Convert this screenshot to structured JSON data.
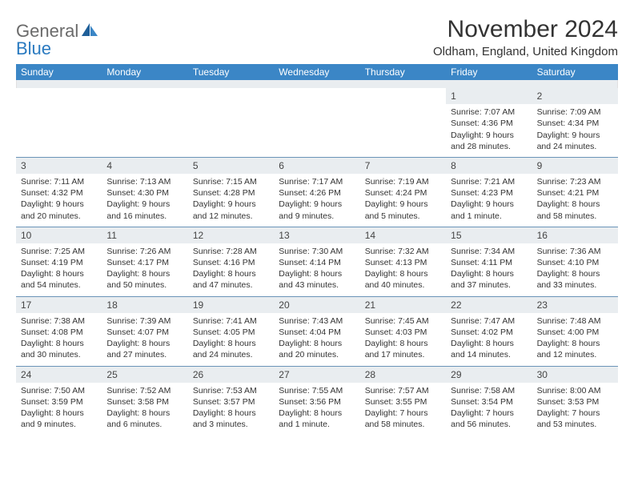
{
  "logo": {
    "text1": "General",
    "text2": "Blue"
  },
  "title": "November 2024",
  "location": "Oldham, England, United Kingdom",
  "colors": {
    "header_bg": "#3b86c6",
    "header_fg": "#ffffff",
    "daynum_bg": "#e9edf0",
    "daynum_border": "#6a94b8",
    "text": "#333333",
    "logo_gray": "#6a6a6a",
    "logo_blue": "#2a7ac0"
  },
  "day_names": [
    "Sunday",
    "Monday",
    "Tuesday",
    "Wednesday",
    "Thursday",
    "Friday",
    "Saturday"
  ],
  "weeks": [
    [
      null,
      null,
      null,
      null,
      null,
      {
        "n": "1",
        "sr": "Sunrise: 7:07 AM",
        "ss": "Sunset: 4:36 PM",
        "d1": "Daylight: 9 hours",
        "d2": "and 28 minutes."
      },
      {
        "n": "2",
        "sr": "Sunrise: 7:09 AM",
        "ss": "Sunset: 4:34 PM",
        "d1": "Daylight: 9 hours",
        "d2": "and 24 minutes."
      }
    ],
    [
      {
        "n": "3",
        "sr": "Sunrise: 7:11 AM",
        "ss": "Sunset: 4:32 PM",
        "d1": "Daylight: 9 hours",
        "d2": "and 20 minutes."
      },
      {
        "n": "4",
        "sr": "Sunrise: 7:13 AM",
        "ss": "Sunset: 4:30 PM",
        "d1": "Daylight: 9 hours",
        "d2": "and 16 minutes."
      },
      {
        "n": "5",
        "sr": "Sunrise: 7:15 AM",
        "ss": "Sunset: 4:28 PM",
        "d1": "Daylight: 9 hours",
        "d2": "and 12 minutes."
      },
      {
        "n": "6",
        "sr": "Sunrise: 7:17 AM",
        "ss": "Sunset: 4:26 PM",
        "d1": "Daylight: 9 hours",
        "d2": "and 9 minutes."
      },
      {
        "n": "7",
        "sr": "Sunrise: 7:19 AM",
        "ss": "Sunset: 4:24 PM",
        "d1": "Daylight: 9 hours",
        "d2": "and 5 minutes."
      },
      {
        "n": "8",
        "sr": "Sunrise: 7:21 AM",
        "ss": "Sunset: 4:23 PM",
        "d1": "Daylight: 9 hours",
        "d2": "and 1 minute."
      },
      {
        "n": "9",
        "sr": "Sunrise: 7:23 AM",
        "ss": "Sunset: 4:21 PM",
        "d1": "Daylight: 8 hours",
        "d2": "and 58 minutes."
      }
    ],
    [
      {
        "n": "10",
        "sr": "Sunrise: 7:25 AM",
        "ss": "Sunset: 4:19 PM",
        "d1": "Daylight: 8 hours",
        "d2": "and 54 minutes."
      },
      {
        "n": "11",
        "sr": "Sunrise: 7:26 AM",
        "ss": "Sunset: 4:17 PM",
        "d1": "Daylight: 8 hours",
        "d2": "and 50 minutes."
      },
      {
        "n": "12",
        "sr": "Sunrise: 7:28 AM",
        "ss": "Sunset: 4:16 PM",
        "d1": "Daylight: 8 hours",
        "d2": "and 47 minutes."
      },
      {
        "n": "13",
        "sr": "Sunrise: 7:30 AM",
        "ss": "Sunset: 4:14 PM",
        "d1": "Daylight: 8 hours",
        "d2": "and 43 minutes."
      },
      {
        "n": "14",
        "sr": "Sunrise: 7:32 AM",
        "ss": "Sunset: 4:13 PM",
        "d1": "Daylight: 8 hours",
        "d2": "and 40 minutes."
      },
      {
        "n": "15",
        "sr": "Sunrise: 7:34 AM",
        "ss": "Sunset: 4:11 PM",
        "d1": "Daylight: 8 hours",
        "d2": "and 37 minutes."
      },
      {
        "n": "16",
        "sr": "Sunrise: 7:36 AM",
        "ss": "Sunset: 4:10 PM",
        "d1": "Daylight: 8 hours",
        "d2": "and 33 minutes."
      }
    ],
    [
      {
        "n": "17",
        "sr": "Sunrise: 7:38 AM",
        "ss": "Sunset: 4:08 PM",
        "d1": "Daylight: 8 hours",
        "d2": "and 30 minutes."
      },
      {
        "n": "18",
        "sr": "Sunrise: 7:39 AM",
        "ss": "Sunset: 4:07 PM",
        "d1": "Daylight: 8 hours",
        "d2": "and 27 minutes."
      },
      {
        "n": "19",
        "sr": "Sunrise: 7:41 AM",
        "ss": "Sunset: 4:05 PM",
        "d1": "Daylight: 8 hours",
        "d2": "and 24 minutes."
      },
      {
        "n": "20",
        "sr": "Sunrise: 7:43 AM",
        "ss": "Sunset: 4:04 PM",
        "d1": "Daylight: 8 hours",
        "d2": "and 20 minutes."
      },
      {
        "n": "21",
        "sr": "Sunrise: 7:45 AM",
        "ss": "Sunset: 4:03 PM",
        "d1": "Daylight: 8 hours",
        "d2": "and 17 minutes."
      },
      {
        "n": "22",
        "sr": "Sunrise: 7:47 AM",
        "ss": "Sunset: 4:02 PM",
        "d1": "Daylight: 8 hours",
        "d2": "and 14 minutes."
      },
      {
        "n": "23",
        "sr": "Sunrise: 7:48 AM",
        "ss": "Sunset: 4:00 PM",
        "d1": "Daylight: 8 hours",
        "d2": "and 12 minutes."
      }
    ],
    [
      {
        "n": "24",
        "sr": "Sunrise: 7:50 AM",
        "ss": "Sunset: 3:59 PM",
        "d1": "Daylight: 8 hours",
        "d2": "and 9 minutes."
      },
      {
        "n": "25",
        "sr": "Sunrise: 7:52 AM",
        "ss": "Sunset: 3:58 PM",
        "d1": "Daylight: 8 hours",
        "d2": "and 6 minutes."
      },
      {
        "n": "26",
        "sr": "Sunrise: 7:53 AM",
        "ss": "Sunset: 3:57 PM",
        "d1": "Daylight: 8 hours",
        "d2": "and 3 minutes."
      },
      {
        "n": "27",
        "sr": "Sunrise: 7:55 AM",
        "ss": "Sunset: 3:56 PM",
        "d1": "Daylight: 8 hours",
        "d2": "and 1 minute."
      },
      {
        "n": "28",
        "sr": "Sunrise: 7:57 AM",
        "ss": "Sunset: 3:55 PM",
        "d1": "Daylight: 7 hours",
        "d2": "and 58 minutes."
      },
      {
        "n": "29",
        "sr": "Sunrise: 7:58 AM",
        "ss": "Sunset: 3:54 PM",
        "d1": "Daylight: 7 hours",
        "d2": "and 56 minutes."
      },
      {
        "n": "30",
        "sr": "Sunrise: 8:00 AM",
        "ss": "Sunset: 3:53 PM",
        "d1": "Daylight: 7 hours",
        "d2": "and 53 minutes."
      }
    ]
  ]
}
